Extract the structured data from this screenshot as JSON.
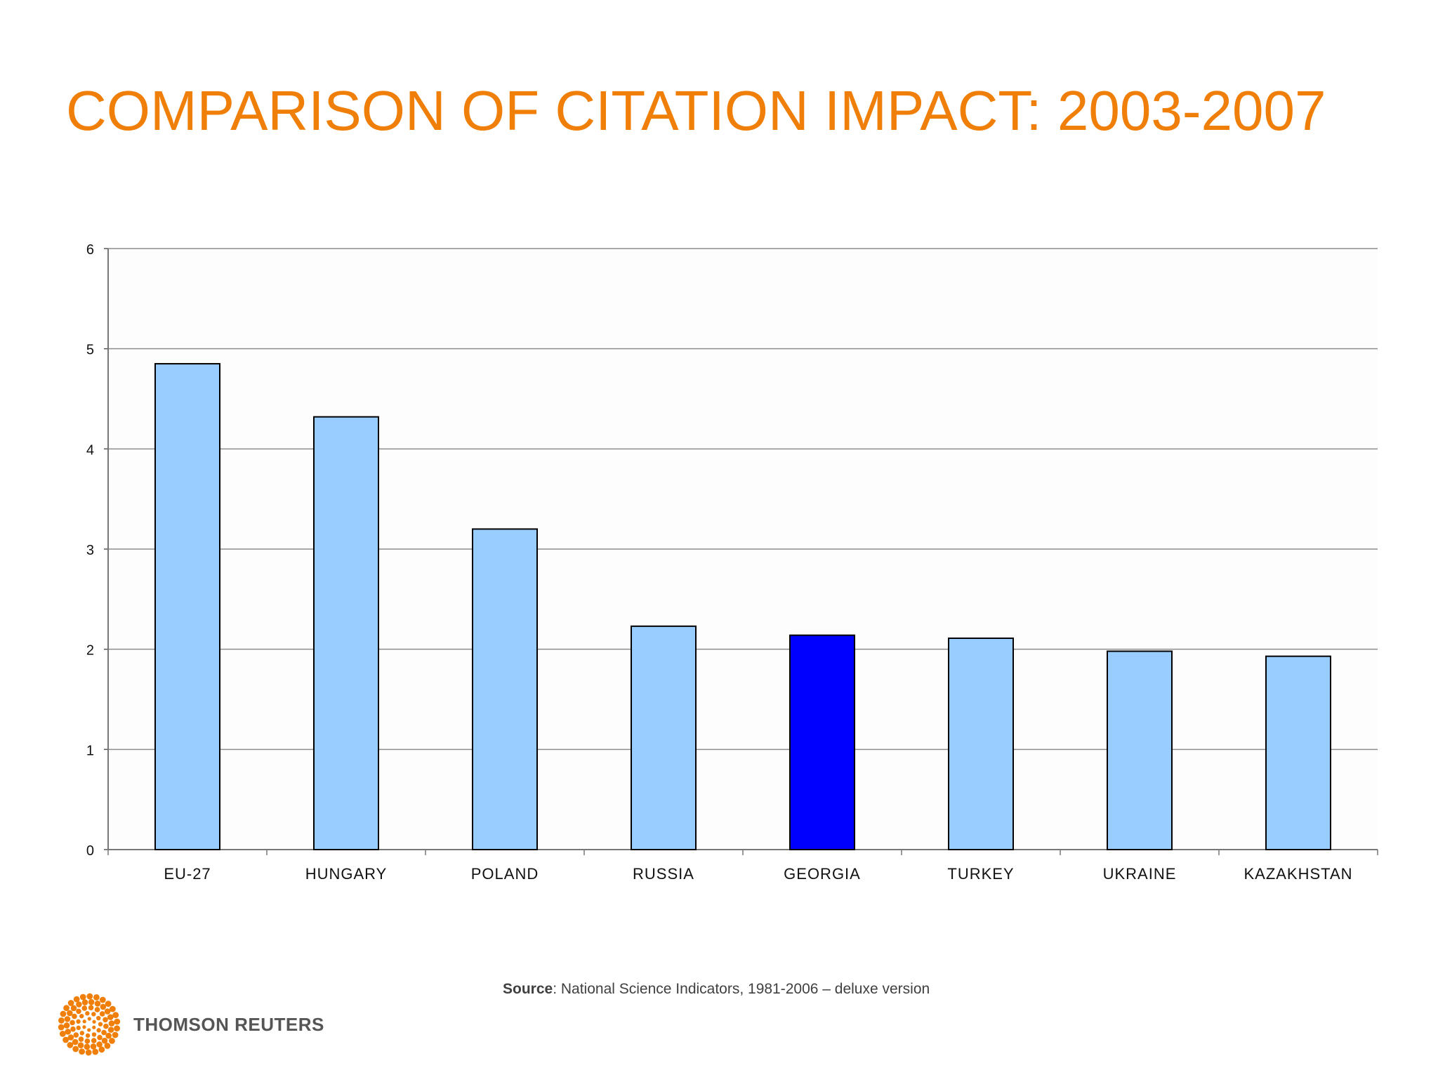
{
  "slide": {
    "title": "COMPARISON OF CITATION IMPACT: 2003-2007",
    "source_label": "Source",
    "source_text": ": National Science Indicators, 1981-2006 – deluxe version",
    "brand": "THOMSON REUTERS"
  },
  "colors": {
    "title": "#f07f09",
    "bar": "#99ccff",
    "bar_highlight": "#0000ff",
    "logo": "#f07f09"
  },
  "icons": {
    "logo": "thomson-reuters-dot-sphere-logo"
  },
  "chart_data": {
    "type": "bar",
    "title": "",
    "xlabel": "",
    "ylabel": "",
    "categories": [
      "EU-27",
      "HUNGARY",
      "POLAND",
      "RUSSIA",
      "GEORGIA",
      "TURKEY",
      "UKRAINE",
      "KAZAKHSTAN"
    ],
    "values": [
      4.85,
      4.32,
      3.2,
      2.23,
      2.14,
      2.11,
      1.98,
      1.93
    ],
    "highlight": "GEORGIA",
    "ylim": [
      0,
      6
    ],
    "yticks": [
      "0",
      "1",
      "2",
      "3",
      "4",
      "5",
      "6"
    ],
    "grid": true,
    "legend": "none"
  }
}
